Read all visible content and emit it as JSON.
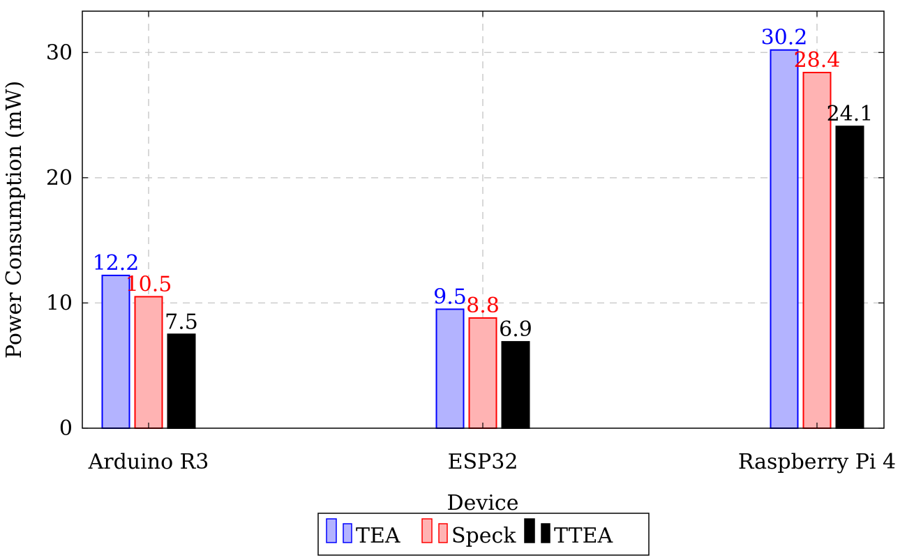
{
  "chart_data": {
    "type": "bar",
    "title": "",
    "xlabel": "Device",
    "ylabel": "Power Consumption (mW)",
    "categories": [
      "Arduino R3",
      "ESP32",
      "Raspberry Pi 4"
    ],
    "series": [
      {
        "name": "TEA",
        "values": [
          12.2,
          9.5,
          30.2
        ],
        "fill": "#b3b3ff",
        "stroke": "#0000ff",
        "label_color": "#0000ff"
      },
      {
        "name": "Speck",
        "values": [
          10.5,
          8.8,
          28.4
        ],
        "fill": "#ffb3b3",
        "stroke": "#ff0000",
        "label_color": "#ff0000"
      },
      {
        "name": "TTEA",
        "values": [
          7.5,
          6.9,
          24.1
        ],
        "fill": "#000000",
        "stroke": "#000000",
        "label_color": "#000000"
      }
    ],
    "value_labels": [
      [
        "12.2",
        "9.5",
        "30.2"
      ],
      [
        "10.5",
        "8.8",
        "28.4"
      ],
      [
        "7.5",
        "6.9",
        "24.1"
      ]
    ],
    "y_ticks": [
      0,
      10,
      20,
      30
    ],
    "y_tick_labels": [
      "0",
      "10",
      "20",
      "30"
    ],
    "ylim": [
      0,
      33.3
    ],
    "grid": true,
    "legend": "bottom-center"
  }
}
